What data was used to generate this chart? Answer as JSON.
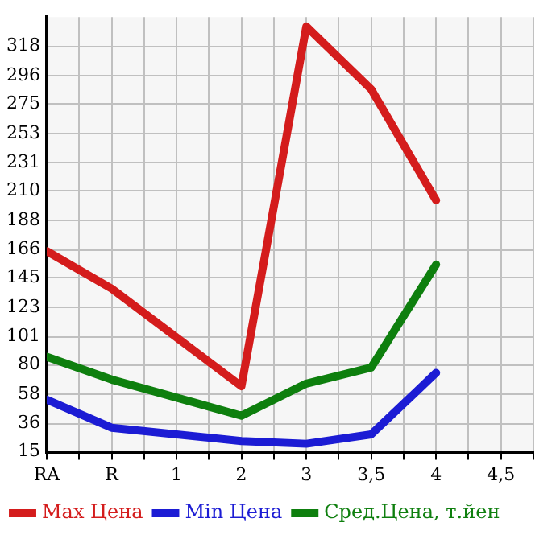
{
  "chart_data": {
    "type": "line",
    "categories": [
      "RA",
      "R",
      "1",
      "2",
      "3",
      "3,5",
      "4",
      "4,5"
    ],
    "series": [
      {
        "name": "Max Цена",
        "color": "#d41c1c",
        "values": [
          165,
          137,
          null,
          64,
          333,
          286,
          203,
          null
        ]
      },
      {
        "name": "Min Цена",
        "color": "#1c1cd4",
        "values": [
          54,
          33,
          null,
          23,
          21,
          28,
          74,
          null
        ]
      },
      {
        "name": "Сред.Цена, т.йен",
        "color": "#0e7f0e",
        "values": [
          86,
          69,
          null,
          42,
          66,
          78,
          155,
          null
        ]
      }
    ],
    "ylim": [
      15,
      340
    ],
    "yticks": [
      15,
      36,
      58,
      80,
      101,
      123,
      145,
      166,
      188,
      210,
      231,
      253,
      275,
      296,
      318
    ],
    "grid": true,
    "legend": "bottom",
    "marker": "none",
    "line_style": "solid"
  }
}
